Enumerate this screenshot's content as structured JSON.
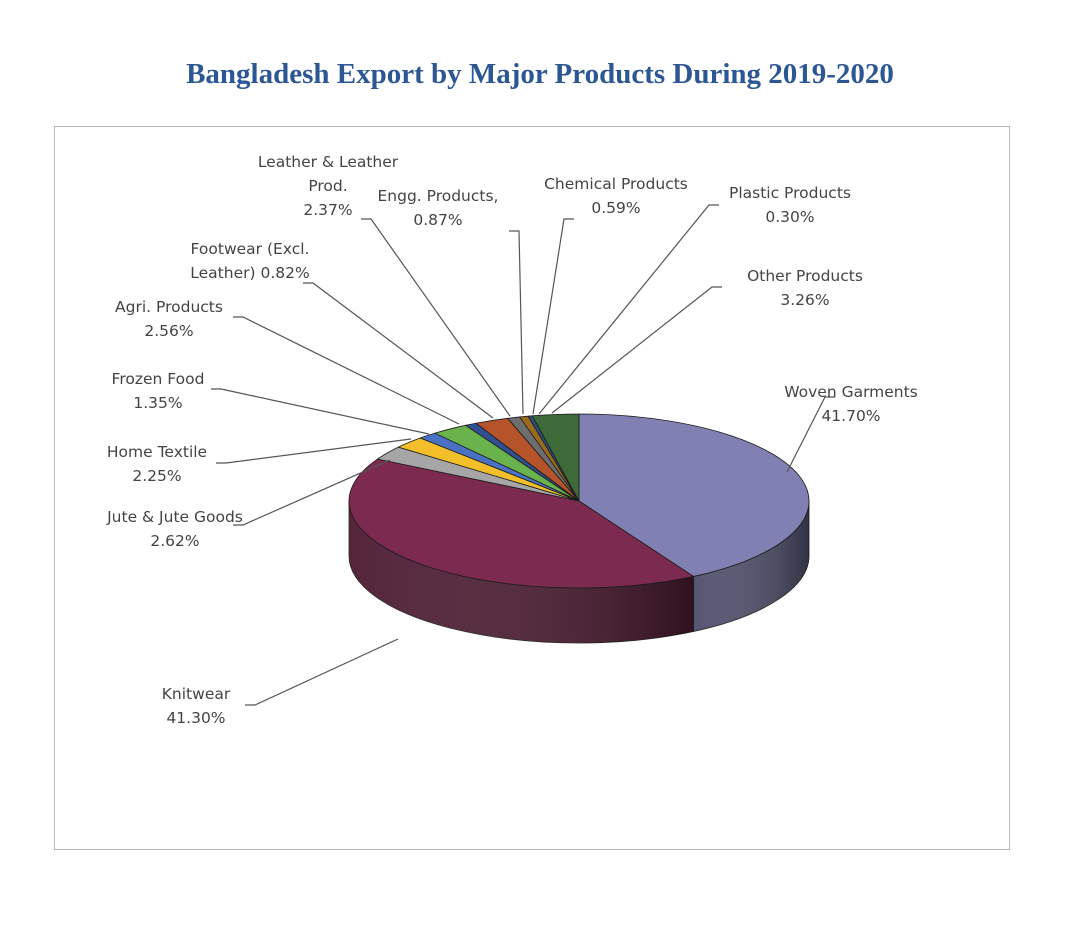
{
  "chart_data": {
    "type": "pie",
    "style": "3d",
    "title": "Bangladesh Export by Major Products During 2019-2020",
    "unit": "%",
    "slices": [
      {
        "name": "Woven Garments",
        "value": 41.7,
        "label_lines": [
          "Woven Garments",
          "41.70%"
        ],
        "color": "#8080b2"
      },
      {
        "name": "Knitwear",
        "value": 41.3,
        "label_lines": [
          "Knitwear",
          "41.30%"
        ],
        "color": "#7d2a50"
      },
      {
        "name": "Jute & Jute Goods",
        "value": 2.62,
        "label_lines": [
          "Jute & Jute Goods",
          "2.62%"
        ],
        "color": "#a6a6a6"
      },
      {
        "name": "Home Textile",
        "value": 2.25,
        "label_lines": [
          "Home Textile",
          "2.25%"
        ],
        "color": "#f2bf2a"
      },
      {
        "name": "Frozen Food",
        "value": 1.35,
        "label_lines": [
          "Frozen Food",
          "1.35%"
        ],
        "color": "#4a72c4"
      },
      {
        "name": "Agri. Products",
        "value": 2.56,
        "label_lines": [
          "Agri. Products",
          "2.56%"
        ],
        "color": "#69b24c"
      },
      {
        "name": "Footwear (Excl. Leather)",
        "value": 0.82,
        "label_lines": [
          "Footwear (Excl.",
          "Leather) 0.82%"
        ],
        "color": "#2f4f8f"
      },
      {
        "name": "Leather & Leather Prod.",
        "value": 2.37,
        "label_lines": [
          "Leather & Leather",
          "Prod.",
          "2.37%"
        ],
        "color": "#b5532a"
      },
      {
        "name": "Engg. Products",
        "value": 0.87,
        "label_lines": [
          "Engg. Products,",
          "0.87%"
        ],
        "color": "#6e6e6e"
      },
      {
        "name": "Chemical Products",
        "value": 0.59,
        "label_lines": [
          "Chemical Products",
          "0.59%"
        ],
        "color": "#9a6b1c"
      },
      {
        "name": "Plastic Products",
        "value": 0.3,
        "label_lines": [
          "Plastic Products",
          "0.30%"
        ],
        "color": "#2d4d7a"
      },
      {
        "name": "Other Products",
        "value": 3.26,
        "label_lines": [
          "Other Products",
          "3.26%"
        ],
        "color": "#3d6a38"
      }
    ]
  }
}
